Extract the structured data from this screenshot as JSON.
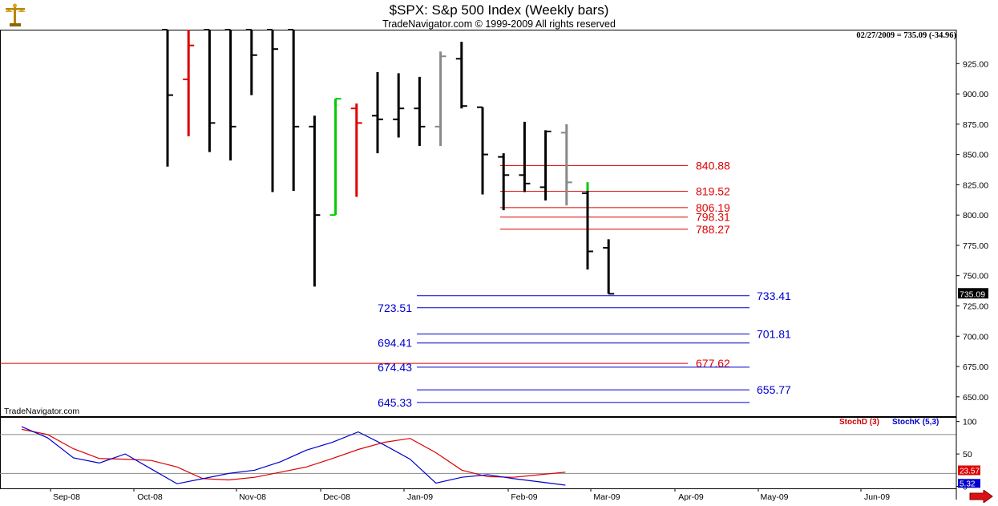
{
  "header": {
    "title": "$SPX:  S&p 500 Index  (Weekly bars)",
    "copyright": "TradeNavigator.com © 1999-2009 All rights reserved",
    "stamp": "02/27/2009 = 735.09 (-34.96)",
    "watermark": "TradeNavigator.com"
  },
  "colors": {
    "up_bar": "#00cc00",
    "down_bar": "#dd0000",
    "neutral_bar": "#000000",
    "gray_bar": "#888888",
    "resistance": "#dd0000",
    "support": "#0000cc",
    "last_price_bg": "#000000"
  },
  "icons": {
    "logo": "brass-scale-icon",
    "scroll": "red-right-arrow-icon"
  },
  "chart_data": [
    {
      "type": "ohlc",
      "title": "$SPX:  S&p 500 Index  (Weekly bars)",
      "y_axis": {
        "ylim": [
          634,
          953
        ],
        "ticks": [
          925,
          900,
          875,
          850,
          825,
          800,
          775,
          750,
          725,
          700,
          675,
          650
        ]
      },
      "x_axis": {
        "labels": [
          "Sep-08",
          "Oct-08",
          "Nov-08",
          "Dec-08",
          "Jan-09",
          "Feb-09",
          "Mar-09",
          "Apr-09",
          "May-09",
          "Jun-09"
        ]
      },
      "last_price": "735.09",
      "bars": [
        {
          "high": 953,
          "low": 840,
          "open": 953,
          "close": 899,
          "color": "black"
        },
        {
          "high": 953,
          "low": 865,
          "open": 912,
          "close": 940,
          "color": "red"
        },
        {
          "high": 953,
          "low": 852,
          "open": 953,
          "close": 876,
          "color": "black"
        },
        {
          "high": 953,
          "low": 845,
          "open": 953,
          "close": 873,
          "color": "black"
        },
        {
          "high": 953,
          "low": 899,
          "open": 953,
          "close": 932,
          "color": "black"
        },
        {
          "high": 953,
          "low": 819,
          "open": 953,
          "close": 937,
          "color": "black"
        },
        {
          "high": 953,
          "low": 820,
          "open": 953,
          "close": 873,
          "color": "black"
        },
        {
          "high": 882,
          "low": 741,
          "open": 873,
          "close": 800,
          "color": "black"
        },
        {
          "high": 896,
          "low": 800,
          "open": 800,
          "close": 896,
          "color": "green"
        },
        {
          "high": 892,
          "low": 815,
          "open": 888,
          "close": 876,
          "color": "red"
        },
        {
          "high": 918,
          "low": 851,
          "open": 882,
          "close": 879,
          "color": "black"
        },
        {
          "high": 917,
          "low": 864,
          "open": 879,
          "close": 888,
          "color": "black"
        },
        {
          "high": 914,
          "low": 857,
          "open": 888,
          "close": 873,
          "color": "black"
        },
        {
          "high": 935,
          "low": 857,
          "open": 873,
          "close": 931,
          "color": "gray"
        },
        {
          "high": 943,
          "low": 888,
          "open": 929,
          "close": 890,
          "color": "black"
        },
        {
          "high": 889,
          "low": 817,
          "open": 889,
          "close": 850,
          "color": "black"
        },
        {
          "high": 851,
          "low": 804,
          "open": 848,
          "close": 833,
          "color": "black"
        },
        {
          "high": 877,
          "low": 819,
          "open": 833,
          "close": 826,
          "color": "black"
        },
        {
          "high": 870,
          "low": 812,
          "open": 823,
          "close": 869,
          "color": "black"
        },
        {
          "high": 875,
          "low": 808,
          "open": 868,
          "close": 827,
          "color": "gray"
        },
        {
          "high": 827,
          "low": 755,
          "open": 818,
          "close": 770,
          "color": "black"
        },
        {
          "high": 780,
          "low": 735,
          "open": 773,
          "close": 735,
          "color": "black"
        }
      ],
      "resistance_levels": [
        {
          "label": "840.88",
          "value": 840.88
        },
        {
          "label": "819.52",
          "value": 819.52
        },
        {
          "label": "806.19",
          "value": 806.19
        },
        {
          "label": "798.31",
          "value": 798.31
        },
        {
          "label": "788.27",
          "value": 788.27
        },
        {
          "label": "677.62",
          "value": 677.62
        }
      ],
      "support_levels": [
        {
          "label": "733.41",
          "value": 733.41,
          "label_side": "right"
        },
        {
          "label": "723.51",
          "value": 723.51,
          "label_side": "left"
        },
        {
          "label": "701.81",
          "value": 701.81,
          "label_side": "right"
        },
        {
          "label": "694.41",
          "value": 694.41,
          "label_side": "left"
        },
        {
          "label": "674.43",
          "value": 674.43,
          "label_side": "left"
        },
        {
          "label": "655.77",
          "value": 655.77,
          "label_side": "right"
        },
        {
          "label": "645.33",
          "value": 645.33,
          "label_side": "left"
        }
      ]
    },
    {
      "type": "line",
      "title": "Stochastic",
      "y_axis": {
        "ylim": [
          -3,
          107
        ],
        "ticks": [
          100,
          50,
          0
        ]
      },
      "last_values": [
        "23.57",
        "5.32"
      ],
      "series": [
        {
          "name": "StochD (3)",
          "color": "#dd0000",
          "values": [
            88,
            80,
            58,
            43,
            42,
            40,
            30,
            12,
            10,
            14,
            22,
            30,
            43,
            57,
            68,
            74,
            52,
            25,
            15,
            14,
            18,
            22
          ]
        },
        {
          "name": "StochK (5,3)",
          "color": "#0000cc",
          "values": [
            92,
            75,
            44,
            36,
            50,
            27,
            4,
            12,
            20,
            25,
            38,
            56,
            68,
            84,
            64,
            42,
            5,
            14,
            18,
            12,
            7,
            2
          ]
        }
      ]
    }
  ]
}
